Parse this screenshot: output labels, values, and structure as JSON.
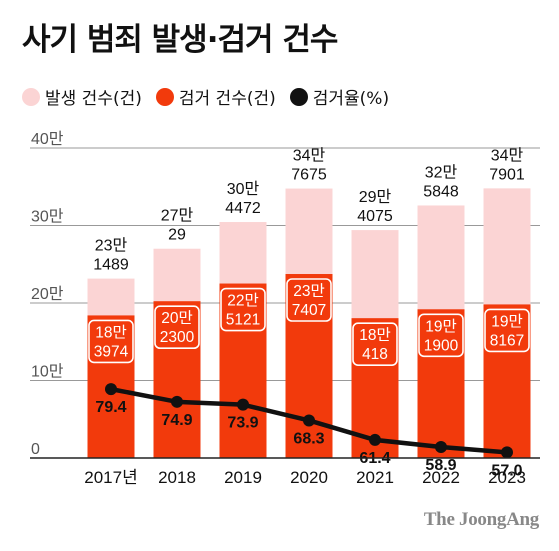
{
  "title": "사기 범죄 발생·검거 건수",
  "legend": [
    {
      "label": "발생 건수(건)",
      "color": "#fbd4d4"
    },
    {
      "label": "검거 건수(건)",
      "color": "#f23a0c"
    },
    {
      "label": "검거율(%)",
      "color": "#111111"
    }
  ],
  "brand": "The JoongAng",
  "chart_data": {
    "type": "bar",
    "categories": [
      "2017년",
      "2018",
      "2019",
      "2020",
      "2021",
      "2022",
      "2023"
    ],
    "ylim": [
      0,
      400000
    ],
    "yticks": [
      {
        "value": 0,
        "label": "0"
      },
      {
        "value": 100000,
        "label": "10만"
      },
      {
        "value": 200000,
        "label": "20만"
      },
      {
        "value": 300000,
        "label": "30만"
      },
      {
        "value": 400000,
        "label": "40만"
      }
    ],
    "series": [
      {
        "name": "발생 건수(건)",
        "type": "bar",
        "color": "#fbd4d4",
        "values": [
          231489,
          270029,
          304472,
          347675,
          294075,
          325848,
          347901
        ],
        "labels": [
          [
            "23만",
            "1489"
          ],
          [
            "27만",
            "29"
          ],
          [
            "30만",
            "4472"
          ],
          [
            "34만",
            "7675"
          ],
          [
            "29만",
            "4075"
          ],
          [
            "32만",
            "5848"
          ],
          [
            "34만",
            "7901"
          ]
        ]
      },
      {
        "name": "검거 건수(건)",
        "type": "bar",
        "color": "#f23a0c",
        "values": [
          183974,
          202300,
          225121,
          237407,
          180418,
          191900,
          198167
        ],
        "labels": [
          [
            "18만",
            "3974"
          ],
          [
            "20만",
            "2300"
          ],
          [
            "22만",
            "5121"
          ],
          [
            "23만",
            "7407"
          ],
          [
            "18만",
            "418"
          ],
          [
            "19만",
            "1900"
          ],
          [
            "19만",
            "8167"
          ]
        ]
      },
      {
        "name": "검거율(%)",
        "type": "line",
        "color": "#111111",
        "values": [
          79.4,
          74.9,
          73.9,
          68.3,
          61.4,
          58.9,
          57.0
        ],
        "labels": [
          "79.4",
          "74.9",
          "73.9",
          "68.3",
          "61.4",
          "58.9",
          "57.0"
        ]
      }
    ]
  }
}
